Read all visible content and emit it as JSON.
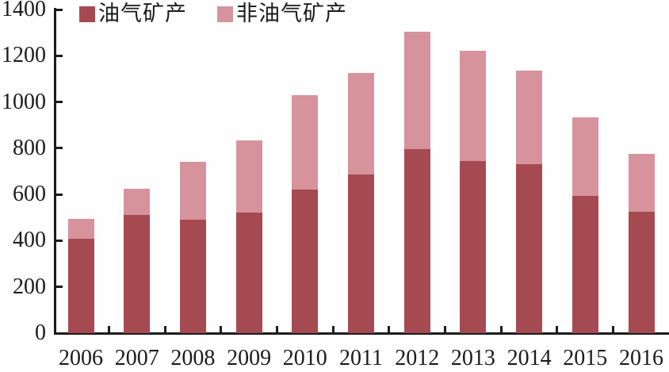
{
  "chart_data": {
    "type": "bar",
    "stacked": true,
    "title": "",
    "xlabel": "",
    "ylabel": "",
    "categories": [
      "2006",
      "2007",
      "2008",
      "2009",
      "2010",
      "2011",
      "2012",
      "2013",
      "2014",
      "2015",
      "2016"
    ],
    "series": [
      {
        "name": "油气矿产",
        "color": "#A54A50",
        "values": [
          410,
          510,
          490,
          520,
          620,
          685,
          795,
          745,
          730,
          595,
          525
        ]
      },
      {
        "name": "非油气矿产",
        "color": "#D6939B",
        "values": [
          85,
          115,
          250,
          315,
          410,
          440,
          510,
          475,
          405,
          340,
          250
        ]
      }
    ],
    "totals": [
      495,
      625,
      740,
      835,
      1030,
      1125,
      1305,
      1220,
      1135,
      935,
      775
    ],
    "ylim": [
      0,
      1400
    ],
    "ytick_step": 200,
    "ytick_labels": [
      "0",
      "200",
      "400",
      "600",
      "800",
      "1000",
      "1200",
      "1400"
    ],
    "grid": false,
    "legend_position": "top-left",
    "axis_color": "#1c1c1c",
    "background": "#ffffff"
  }
}
